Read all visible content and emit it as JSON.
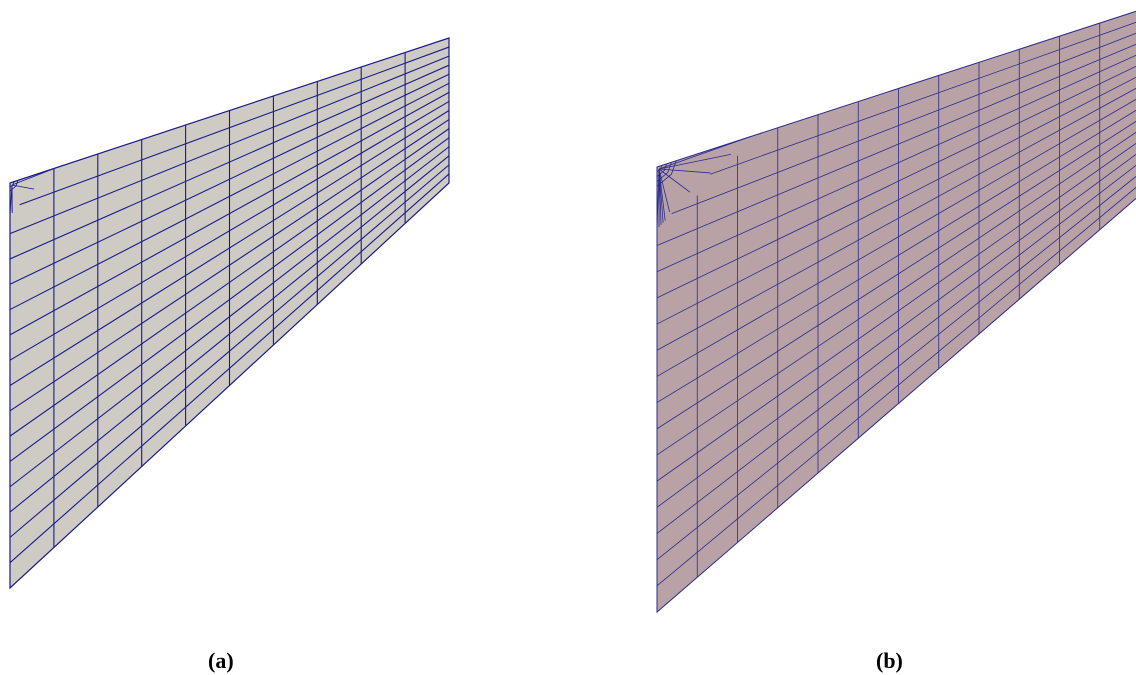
{
  "panels": [
    {
      "caption": "(a)",
      "fill_color": "#cdcbc4",
      "line_color": "#1a1a8c",
      "mesh": {
        "columns": 10,
        "rows": 16,
        "corner_refinement": "coarse"
      }
    },
    {
      "caption": "(b)",
      "fill_color": "#b8a2a6",
      "line_color": "#2b2b8e",
      "mesh": {
        "columns": 12,
        "rows": 17,
        "corner_refinement": "fine"
      }
    }
  ]
}
